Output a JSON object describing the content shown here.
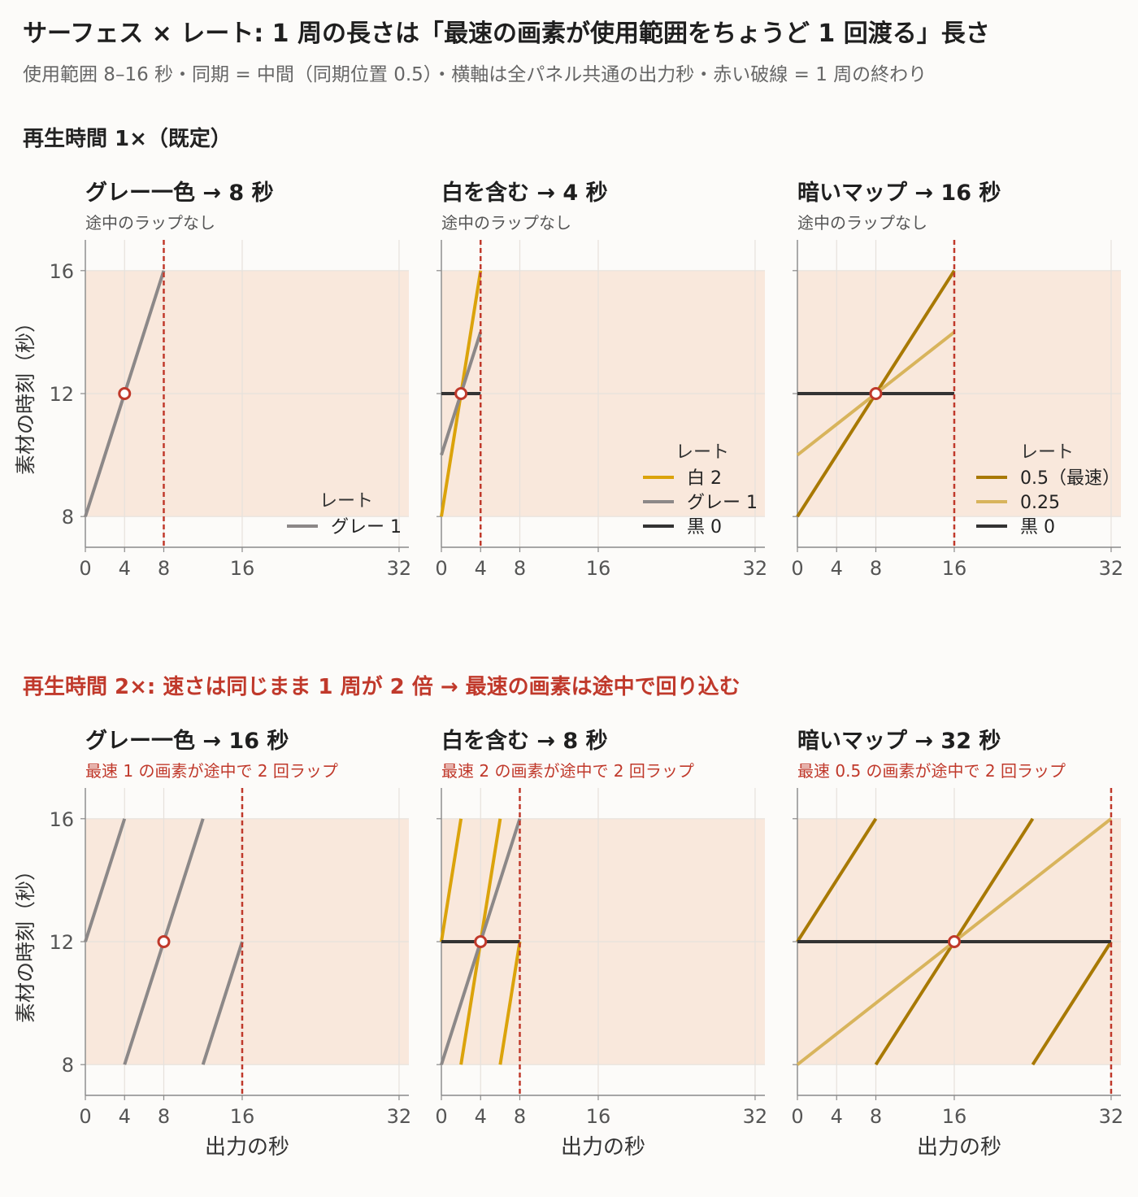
{
  "title": "サーフェス × レート: 1 周の長さは「最速の画素が使用範囲をちょうど 1 回渡る」長さ",
  "subtitle": "使用範囲 8–16 秒・同期 = 中間（同期位置 0.5）・横軸は全パネル共通の出力秒・赤い破線 = 1 周の終わり",
  "rows": [
    {
      "title": "再生時間 1×（既定）",
      "color": "#222222"
    },
    {
      "title": "再生時間 2×: 速さは同じまま 1 周が 2 倍 → 最速の画素は途中で回り込む",
      "color": "#c0392b"
    }
  ],
  "colors": {
    "band": "#f9e8dc",
    "cycle_end": "#c0392b",
    "marker": "#c0392b",
    "white": "#dba30b",
    "gray": "#8c8888",
    "black": "#333333",
    "fast": "#a87904",
    "slow": "#d8b45c"
  },
  "chart_data": [
    {
      "type": "line",
      "row": 0,
      "col": 0,
      "title": "グレー一色 → 8 秒",
      "subtitle": "途中のラップなし",
      "subtitle_color": "#555555",
      "ylabel": "素材の時刻（秒）",
      "xlabel": "",
      "xlim": [
        0,
        33
      ],
      "ylim": [
        7,
        17
      ],
      "xticks": [
        0,
        4,
        8,
        16,
        32
      ],
      "yticks": [
        8,
        12,
        16
      ],
      "band": [
        8,
        16
      ],
      "cycle_end": 8,
      "sync_point": [
        4,
        12
      ],
      "legend_title": "レート",
      "legend_position": "lower right",
      "series": [
        {
          "name": "グレー 1",
          "color": "#8c8888",
          "segments": [
            [
              [
                0,
                8
              ],
              [
                8,
                16
              ]
            ]
          ]
        }
      ]
    },
    {
      "type": "line",
      "row": 0,
      "col": 1,
      "title": "白を含む → 4 秒",
      "subtitle": "途中のラップなし",
      "subtitle_color": "#555555",
      "ylabel": "",
      "xlabel": "",
      "xlim": [
        0,
        33
      ],
      "ylim": [
        7,
        17
      ],
      "xticks": [
        0,
        4,
        8,
        16,
        32
      ],
      "yticks": [
        8,
        12,
        16
      ],
      "band": [
        8,
        16
      ],
      "cycle_end": 4,
      "sync_point": [
        2,
        12
      ],
      "legend_title": "レート",
      "legend_position": "lower right",
      "series": [
        {
          "name": "白 2",
          "color": "#dba30b",
          "segments": [
            [
              [
                0,
                8
              ],
              [
                4,
                16
              ]
            ]
          ]
        },
        {
          "name": "グレー 1",
          "color": "#8c8888",
          "segments": [
            [
              [
                0,
                10
              ],
              [
                4,
                14
              ]
            ]
          ]
        },
        {
          "name": "黒 0",
          "color": "#333333",
          "segments": [
            [
              [
                0,
                12
              ],
              [
                4,
                12
              ]
            ]
          ]
        }
      ]
    },
    {
      "type": "line",
      "row": 0,
      "col": 2,
      "title": "暗いマップ → 16 秒",
      "subtitle": "途中のラップなし",
      "subtitle_color": "#555555",
      "ylabel": "",
      "xlabel": "",
      "xlim": [
        0,
        33
      ],
      "ylim": [
        7,
        17
      ],
      "xticks": [
        0,
        4,
        8,
        16,
        32
      ],
      "yticks": [
        8,
        12,
        16
      ],
      "band": [
        8,
        16
      ],
      "cycle_end": 16,
      "sync_point": [
        8,
        12
      ],
      "legend_title": "レート",
      "legend_position": "lower right",
      "series": [
        {
          "name": "0.5（最速）",
          "color": "#a87904",
          "segments": [
            [
              [
                0,
                8
              ],
              [
                16,
                16
              ]
            ]
          ]
        },
        {
          "name": "0.25",
          "color": "#d8b45c",
          "segments": [
            [
              [
                0,
                10
              ],
              [
                16,
                14
              ]
            ]
          ]
        },
        {
          "name": "黒 0",
          "color": "#333333",
          "segments": [
            [
              [
                0,
                12
              ],
              [
                16,
                12
              ]
            ]
          ]
        }
      ]
    },
    {
      "type": "line",
      "row": 1,
      "col": 0,
      "title": "グレー一色 → 16 秒",
      "subtitle": "最速 1 の画素が途中で 2 回ラップ",
      "subtitle_color": "#c0392b",
      "ylabel": "素材の時刻（秒）",
      "xlabel": "出力の秒",
      "xlim": [
        0,
        33
      ],
      "ylim": [
        7,
        17
      ],
      "xticks": [
        0,
        4,
        8,
        16,
        32
      ],
      "yticks": [
        8,
        12,
        16
      ],
      "band": [
        8,
        16
      ],
      "cycle_end": 16,
      "sync_point": [
        8,
        12
      ],
      "series": [
        {
          "name": "グレー 1",
          "color": "#8c8888",
          "segments": [
            [
              [
                0,
                12
              ],
              [
                4,
                16
              ]
            ],
            [
              [
                4,
                8
              ],
              [
                12,
                16
              ]
            ],
            [
              [
                12,
                8
              ],
              [
                16,
                12
              ]
            ]
          ]
        }
      ]
    },
    {
      "type": "line",
      "row": 1,
      "col": 1,
      "title": "白を含む → 8 秒",
      "subtitle": "最速 2 の画素が途中で 2 回ラップ",
      "subtitle_color": "#c0392b",
      "ylabel": "",
      "xlabel": "出力の秒",
      "xlim": [
        0,
        33
      ],
      "ylim": [
        7,
        17
      ],
      "xticks": [
        0,
        4,
        8,
        16,
        32
      ],
      "yticks": [
        8,
        12,
        16
      ],
      "band": [
        8,
        16
      ],
      "cycle_end": 8,
      "sync_point": [
        4,
        12
      ],
      "series": [
        {
          "name": "白 2",
          "color": "#dba30b",
          "segments": [
            [
              [
                0,
                12
              ],
              [
                2,
                16
              ]
            ],
            [
              [
                2,
                8
              ],
              [
                6,
                16
              ]
            ],
            [
              [
                6,
                8
              ],
              [
                8,
                12
              ]
            ]
          ]
        },
        {
          "name": "グレー 1",
          "color": "#8c8888",
          "segments": [
            [
              [
                0,
                8
              ],
              [
                8,
                16
              ]
            ]
          ]
        },
        {
          "name": "黒 0",
          "color": "#333333",
          "segments": [
            [
              [
                0,
                12
              ],
              [
                8,
                12
              ]
            ]
          ]
        }
      ]
    },
    {
      "type": "line",
      "row": 1,
      "col": 2,
      "title": "暗いマップ → 32 秒",
      "subtitle": "最速 0.5 の画素が途中で 2 回ラップ",
      "subtitle_color": "#c0392b",
      "ylabel": "",
      "xlabel": "出力の秒",
      "xlim": [
        0,
        33
      ],
      "ylim": [
        7,
        17
      ],
      "xticks": [
        0,
        4,
        8,
        16,
        32
      ],
      "yticks": [
        8,
        12,
        16
      ],
      "band": [
        8,
        16
      ],
      "cycle_end": 32,
      "sync_point": [
        16,
        12
      ],
      "series": [
        {
          "name": "0.5（最速）",
          "color": "#a87904",
          "segments": [
            [
              [
                0,
                12
              ],
              [
                8,
                16
              ]
            ],
            [
              [
                8,
                8
              ],
              [
                24,
                16
              ]
            ],
            [
              [
                24,
                8
              ],
              [
                32,
                12
              ]
            ]
          ]
        },
        {
          "name": "0.25",
          "color": "#d8b45c",
          "segments": [
            [
              [
                0,
                8
              ],
              [
                32,
                16
              ]
            ]
          ]
        },
        {
          "name": "黒 0",
          "color": "#333333",
          "segments": [
            [
              [
                0,
                12
              ],
              [
                32,
                12
              ]
            ]
          ]
        }
      ]
    }
  ]
}
